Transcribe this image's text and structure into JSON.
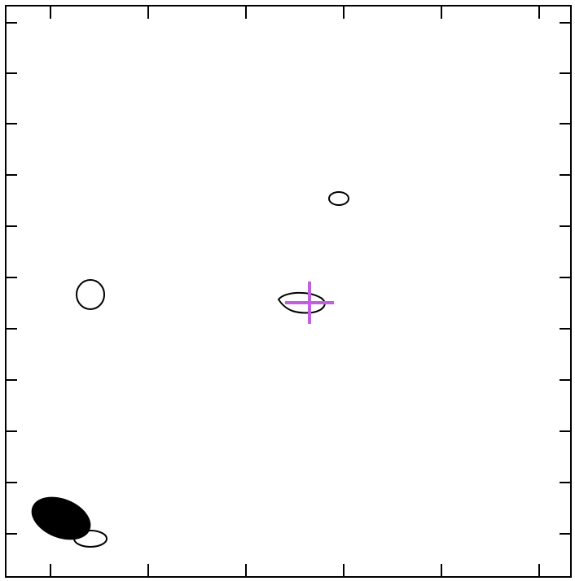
{
  "figure": {
    "type": "contour map",
    "background_color": "#ffffff",
    "frame_color": "#000000",
    "contour_color": "#000000",
    "beam_color": "#000000",
    "marker_color": "#c060e0",
    "axis_labels": "none",
    "tick_labels": "none",
    "grid": false
  },
  "contours": [
    {
      "id": "upper-right-contour"
    },
    {
      "id": "left-contour"
    },
    {
      "id": "center-contour"
    },
    {
      "id": "lower-left-contour"
    }
  ],
  "beam": {
    "shape": "filled ellipse",
    "location": "bottom-left"
  },
  "marker": {
    "shape": "cross",
    "location": "center"
  }
}
